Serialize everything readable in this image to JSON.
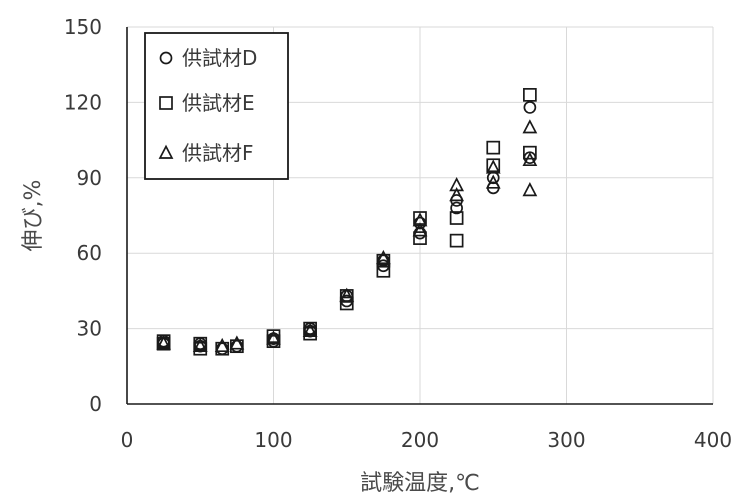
{
  "chart_data": {
    "type": "scatter",
    "title": "",
    "xlabel": "試験温度,℃",
    "ylabel": "伸び,%",
    "xlim": [
      0,
      400
    ],
    "ylim": [
      0,
      150
    ],
    "x_ticks": [
      "0",
      "100",
      "200",
      "300",
      "400"
    ],
    "y_ticks": [
      "0",
      "30",
      "60",
      "90",
      "120",
      "150"
    ],
    "grid": true,
    "legend_position": "top-left",
    "series": [
      {
        "name": "供試材D",
        "marker": "circle",
        "points": [
          [
            25,
            24
          ],
          [
            25,
            25
          ],
          [
            50,
            23
          ],
          [
            50,
            24
          ],
          [
            65,
            22
          ],
          [
            75,
            23
          ],
          [
            100,
            25
          ],
          [
            100,
            26
          ],
          [
            125,
            29
          ],
          [
            125,
            30
          ],
          [
            150,
            41
          ],
          [
            150,
            43
          ],
          [
            175,
            55
          ],
          [
            175,
            57
          ],
          [
            200,
            68
          ],
          [
            200,
            72
          ],
          [
            225,
            78
          ],
          [
            225,
            81
          ],
          [
            250,
            86
          ],
          [
            250,
            90
          ],
          [
            275,
            118
          ],
          [
            275,
            98
          ]
        ]
      },
      {
        "name": "供試材E",
        "marker": "square",
        "points": [
          [
            25,
            24
          ],
          [
            25,
            25
          ],
          [
            50,
            22
          ],
          [
            50,
            24
          ],
          [
            65,
            22
          ],
          [
            75,
            23
          ],
          [
            100,
            25
          ],
          [
            100,
            27
          ],
          [
            125,
            28
          ],
          [
            125,
            30
          ],
          [
            150,
            40
          ],
          [
            150,
            43
          ],
          [
            175,
            53
          ],
          [
            175,
            57
          ],
          [
            200,
            66
          ],
          [
            200,
            74
          ],
          [
            225,
            65
          ],
          [
            225,
            74
          ],
          [
            250,
            102
          ],
          [
            250,
            95
          ],
          [
            275,
            123
          ],
          [
            275,
            100
          ]
        ]
      },
      {
        "name": "供試材F",
        "marker": "triangle",
        "points": [
          [
            25,
            24
          ],
          [
            50,
            23
          ],
          [
            65,
            23
          ],
          [
            75,
            24
          ],
          [
            100,
            26
          ],
          [
            125,
            29
          ],
          [
            150,
            43
          ],
          [
            175,
            58
          ],
          [
            200,
            73
          ],
          [
            200,
            69
          ],
          [
            225,
            87
          ],
          [
            225,
            83
          ],
          [
            250,
            88
          ],
          [
            250,
            94
          ],
          [
            275,
            110
          ],
          [
            275,
            97
          ],
          [
            275,
            85
          ]
        ]
      }
    ]
  }
}
